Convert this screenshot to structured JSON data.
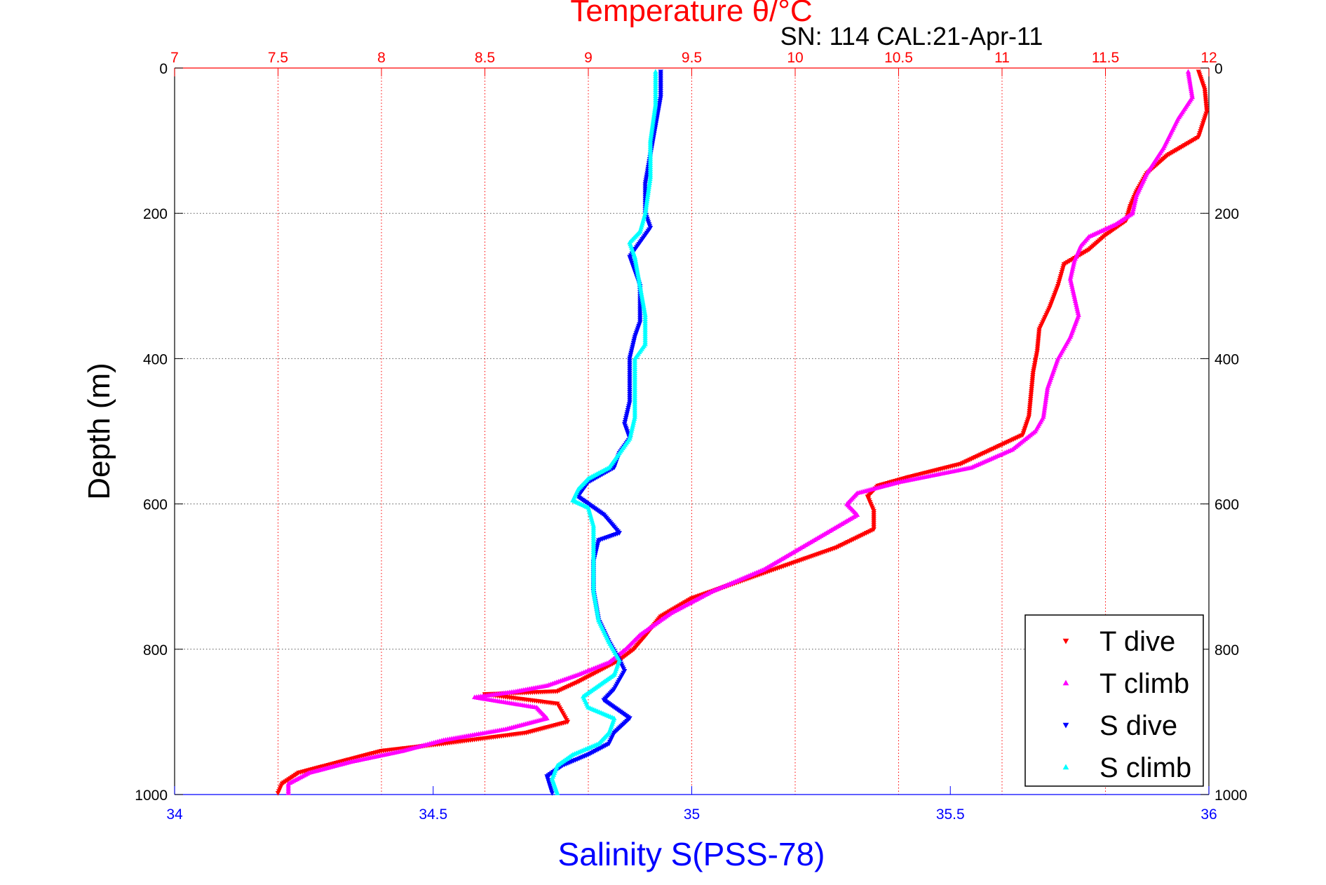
{
  "chart_data": {
    "type": "scatter",
    "title": "Temperature θ/°C",
    "subtitle": "SN: 114  CAL:21-Apr-11",
    "ylabel": "Depth (m)",
    "xlabel_bottom": "Salinity S(PSS-78)",
    "xlabel_top": "Temperature θ/°C",
    "y_reversed": true,
    "ylim": [
      0,
      1000
    ],
    "y_ticks": [
      "0",
      "200",
      "400",
      "600",
      "800",
      "1000"
    ],
    "x_bottom_lim": [
      34,
      36
    ],
    "x_bottom_ticks": [
      "34",
      "34.5",
      "35",
      "35.5",
      "36"
    ],
    "x_top_lim": [
      7,
      12
    ],
    "x_top_ticks": [
      "7",
      "7.5",
      "8",
      "8.5",
      "9",
      "9.5",
      "10",
      "10.5",
      "11",
      "11.5",
      "12"
    ],
    "grid": "vertical dotted red at temperature ticks, horizontal dotted grey at depth ticks",
    "legend_position": "bottom-right",
    "series": [
      {
        "name": "T dive",
        "axis": "temperature",
        "color": "#ff0000",
        "marker": "triangle-down",
        "points": [
          [
            11.95,
            5
          ],
          [
            11.98,
            30
          ],
          [
            11.99,
            60
          ],
          [
            11.95,
            95
          ],
          [
            11.8,
            120
          ],
          [
            11.7,
            145
          ],
          [
            11.65,
            170
          ],
          [
            11.62,
            190
          ],
          [
            11.6,
            210
          ],
          [
            11.5,
            230
          ],
          [
            11.42,
            250
          ],
          [
            11.3,
            270
          ],
          [
            11.27,
            300
          ],
          [
            11.23,
            330
          ],
          [
            11.18,
            360
          ],
          [
            11.17,
            390
          ],
          [
            11.15,
            420
          ],
          [
            11.14,
            450
          ],
          [
            11.13,
            480
          ],
          [
            11.1,
            505
          ],
          [
            10.95,
            525
          ],
          [
            10.8,
            545
          ],
          [
            10.55,
            563
          ],
          [
            10.4,
            575
          ],
          [
            10.35,
            590
          ],
          [
            10.38,
            610
          ],
          [
            10.38,
            635
          ],
          [
            10.2,
            660
          ],
          [
            10.0,
            680
          ],
          [
            9.8,
            700
          ],
          [
            9.5,
            730
          ],
          [
            9.35,
            755
          ],
          [
            9.28,
            780
          ],
          [
            9.22,
            800
          ],
          [
            9.15,
            815
          ],
          [
            9.05,
            830
          ],
          [
            8.95,
            845
          ],
          [
            8.85,
            858
          ],
          [
            8.5,
            862
          ],
          [
            8.85,
            875
          ],
          [
            8.9,
            900
          ],
          [
            8.7,
            915
          ],
          [
            8.3,
            930
          ],
          [
            8.0,
            940
          ],
          [
            7.8,
            955
          ],
          [
            7.6,
            970
          ],
          [
            7.52,
            985
          ],
          [
            7.5,
            998
          ]
        ]
      },
      {
        "name": "T climb",
        "axis": "temperature",
        "color": "#ff00ff",
        "marker": "triangle-up",
        "points": [
          [
            11.9,
            5
          ],
          [
            11.92,
            40
          ],
          [
            11.85,
            70
          ],
          [
            11.78,
            110
          ],
          [
            11.7,
            145
          ],
          [
            11.65,
            175
          ],
          [
            11.63,
            200
          ],
          [
            11.55,
            215
          ],
          [
            11.42,
            232
          ],
          [
            11.38,
            245
          ],
          [
            11.35,
            265
          ],
          [
            11.33,
            290
          ],
          [
            11.35,
            315
          ],
          [
            11.37,
            340
          ],
          [
            11.33,
            370
          ],
          [
            11.27,
            400
          ],
          [
            11.22,
            440
          ],
          [
            11.2,
            480
          ],
          [
            11.16,
            500
          ],
          [
            11.05,
            525
          ],
          [
            10.85,
            550
          ],
          [
            10.5,
            570
          ],
          [
            10.3,
            585
          ],
          [
            10.25,
            600
          ],
          [
            10.3,
            615
          ],
          [
            10.15,
            640
          ],
          [
            10.0,
            665
          ],
          [
            9.85,
            690
          ],
          [
            9.6,
            720
          ],
          [
            9.4,
            750
          ],
          [
            9.25,
            780
          ],
          [
            9.18,
            800
          ],
          [
            9.1,
            818
          ],
          [
            8.95,
            835
          ],
          [
            8.8,
            850
          ],
          [
            8.65,
            858
          ],
          [
            8.45,
            866
          ],
          [
            8.75,
            880
          ],
          [
            8.8,
            895
          ],
          [
            8.6,
            910
          ],
          [
            8.3,
            925
          ],
          [
            8.1,
            940
          ],
          [
            7.85,
            955
          ],
          [
            7.65,
            970
          ],
          [
            7.55,
            985
          ],
          [
            7.55,
            998
          ]
        ]
      },
      {
        "name": "S dive",
        "axis": "salinity",
        "color": "#0000ff",
        "marker": "triangle-down",
        "points": [
          [
            34.94,
            5
          ],
          [
            34.94,
            40
          ],
          [
            34.93,
            80
          ],
          [
            34.92,
            120
          ],
          [
            34.91,
            160
          ],
          [
            34.91,
            200
          ],
          [
            34.92,
            220
          ],
          [
            34.9,
            240
          ],
          [
            34.88,
            260
          ],
          [
            34.89,
            280
          ],
          [
            34.9,
            300
          ],
          [
            34.9,
            320
          ],
          [
            34.9,
            350
          ],
          [
            34.89,
            370
          ],
          [
            34.88,
            400
          ],
          [
            34.88,
            420
          ],
          [
            34.88,
            460
          ],
          [
            34.87,
            490
          ],
          [
            34.88,
            510
          ],
          [
            34.86,
            530
          ],
          [
            34.85,
            550
          ],
          [
            34.8,
            570
          ],
          [
            34.78,
            590
          ],
          [
            34.8,
            600
          ],
          [
            34.83,
            615
          ],
          [
            34.86,
            640
          ],
          [
            34.82,
            650
          ],
          [
            34.81,
            680
          ],
          [
            34.81,
            720
          ],
          [
            34.82,
            760
          ],
          [
            34.84,
            790
          ],
          [
            34.86,
            815
          ],
          [
            34.87,
            830
          ],
          [
            34.85,
            855
          ],
          [
            34.83,
            870
          ],
          [
            34.85,
            880
          ],
          [
            34.88,
            895
          ],
          [
            34.85,
            915
          ],
          [
            34.84,
            930
          ],
          [
            34.8,
            945
          ],
          [
            34.75,
            960
          ],
          [
            34.72,
            975
          ],
          [
            34.73,
            998
          ]
        ]
      },
      {
        "name": "S climb",
        "axis": "salinity",
        "color": "#00ffff",
        "marker": "triangle-up",
        "points": [
          [
            34.93,
            5
          ],
          [
            34.93,
            50
          ],
          [
            34.92,
            100
          ],
          [
            34.92,
            150
          ],
          [
            34.91,
            200
          ],
          [
            34.9,
            225
          ],
          [
            34.88,
            240
          ],
          [
            34.89,
            260
          ],
          [
            34.9,
            300
          ],
          [
            34.91,
            340
          ],
          [
            34.91,
            380
          ],
          [
            34.89,
            400
          ],
          [
            34.89,
            440
          ],
          [
            34.89,
            480
          ],
          [
            34.88,
            510
          ],
          [
            34.86,
            530
          ],
          [
            34.84,
            550
          ],
          [
            34.8,
            565
          ],
          [
            34.78,
            580
          ],
          [
            34.77,
            595
          ],
          [
            34.8,
            605
          ],
          [
            34.81,
            630
          ],
          [
            34.81,
            680
          ],
          [
            34.81,
            720
          ],
          [
            34.82,
            760
          ],
          [
            34.84,
            790
          ],
          [
            34.86,
            815
          ],
          [
            34.85,
            835
          ],
          [
            34.82,
            850
          ],
          [
            34.79,
            865
          ],
          [
            34.8,
            880
          ],
          [
            34.85,
            895
          ],
          [
            34.84,
            915
          ],
          [
            34.82,
            930
          ],
          [
            34.77,
            945
          ],
          [
            34.74,
            960
          ],
          [
            34.73,
            978
          ],
          [
            34.74,
            998
          ]
        ]
      }
    ]
  }
}
